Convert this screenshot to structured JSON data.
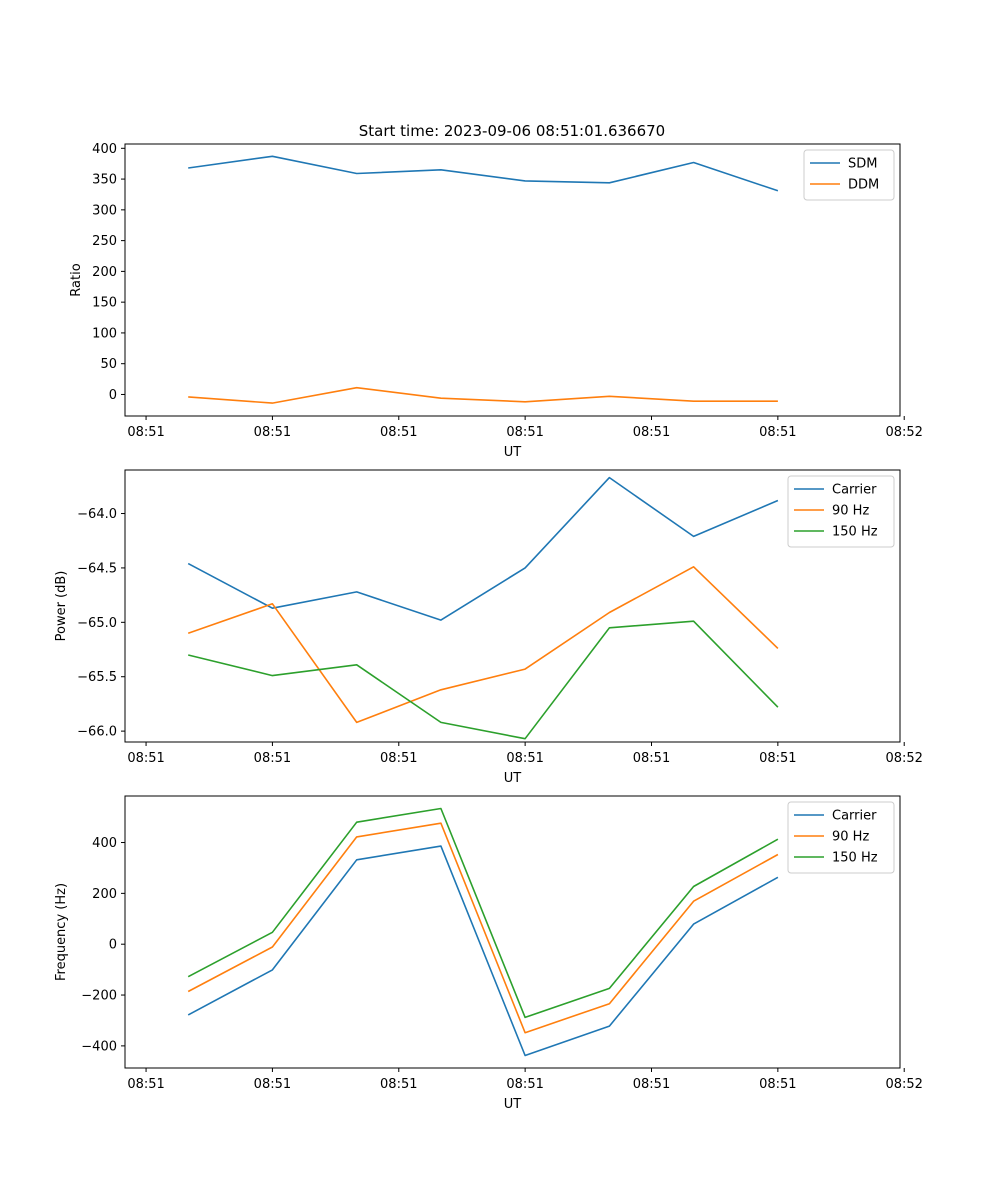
{
  "figure_title": "Start time: 2023-09-06 08:51:01.636670",
  "colors": {
    "c0": "#1f77b4",
    "c1": "#ff7f0e",
    "c2": "#2ca02c"
  },
  "chart_data": [
    {
      "type": "line",
      "title": "Start time: 2023-09-06 08:51:01.636670",
      "xlabel": "UT",
      "ylabel": "Ratio",
      "x": [
        1,
        2,
        3,
        4,
        5,
        6,
        7,
        8
      ],
      "xlim": [
        0.25,
        9.45
      ],
      "ylim": [
        -35,
        407
      ],
      "xticks": [
        0.5,
        2.0,
        3.5,
        5.0,
        6.5,
        8.0,
        9.5
      ],
      "xticklabels": [
        "08:51",
        "08:51",
        "08:51",
        "08:51",
        "08:51",
        "08:51",
        "08:52"
      ],
      "yticks": [
        400,
        350,
        300,
        250,
        200,
        150,
        100,
        50,
        0
      ],
      "yticklabels": [
        "400",
        "350",
        "300",
        "250",
        "200",
        "150",
        "100",
        "50",
        "0"
      ],
      "legend_loc": "top-right",
      "series": [
        {
          "name": "SDM",
          "color": "#1f77b4",
          "values": [
            368,
            387,
            359,
            365,
            347,
            344,
            377,
            331
          ]
        },
        {
          "name": "DDM",
          "color": "#ff7f0e",
          "values": [
            -4,
            -14,
            11,
            -6,
            -12,
            -3,
            -11,
            -11
          ]
        }
      ]
    },
    {
      "type": "line",
      "title": "",
      "xlabel": "UT",
      "ylabel": "Power (dB)",
      "x": [
        1,
        2,
        3,
        4,
        5,
        6,
        7,
        8
      ],
      "xlim": [
        0.25,
        9.45
      ],
      "ylim": [
        -66.1,
        -63.6
      ],
      "xticks": [
        0.5,
        2.0,
        3.5,
        5.0,
        6.5,
        8.0,
        9.5
      ],
      "xticklabels": [
        "08:51",
        "08:51",
        "08:51",
        "08:51",
        "08:51",
        "08:51",
        "08:52"
      ],
      "yticks": [
        -64.0,
        -64.5,
        -65.0,
        -65.5,
        -66.0
      ],
      "yticklabels": [
        "−64.0",
        "−64.5",
        "−65.0",
        "−65.5",
        "−66.0"
      ],
      "legend_loc": "top-right",
      "series": [
        {
          "name": "Carrier",
          "color": "#1f77b4",
          "values": [
            -64.46,
            -64.87,
            -64.72,
            -64.98,
            -64.5,
            -63.67,
            -64.21,
            -63.88
          ]
        },
        {
          "name": "90 Hz",
          "color": "#ff7f0e",
          "values": [
            -65.1,
            -64.83,
            -65.92,
            -65.62,
            -65.43,
            -64.91,
            -64.49,
            -65.24
          ]
        },
        {
          "name": "150 Hz",
          "color": "#2ca02c",
          "values": [
            -65.3,
            -65.49,
            -65.39,
            -65.92,
            -66.07,
            -65.05,
            -64.99,
            -65.78
          ]
        }
      ]
    },
    {
      "type": "line",
      "title": "",
      "xlabel": "UT",
      "ylabel": "Frequency (Hz)",
      "x": [
        1,
        2,
        3,
        4,
        5,
        6,
        7,
        8
      ],
      "xlim": [
        0.25,
        9.45
      ],
      "ylim": [
        -487,
        583
      ],
      "xticks": [
        0.5,
        2.0,
        3.5,
        5.0,
        6.5,
        8.0,
        9.5
      ],
      "xticklabels": [
        "08:51",
        "08:51",
        "08:51",
        "08:51",
        "08:51",
        "08:51",
        "08:52"
      ],
      "yticks": [
        400,
        200,
        0,
        -200,
        -400
      ],
      "yticklabels": [
        "400",
        "200",
        "0",
        "−200",
        "−400"
      ],
      "legend_loc": "top-right",
      "series": [
        {
          "name": "Carrier",
          "color": "#1f77b4",
          "values": [
            -278,
            -101,
            332,
            386,
            -438,
            -322,
            79,
            263
          ]
        },
        {
          "name": "90 Hz",
          "color": "#ff7f0e",
          "values": [
            -186,
            -11,
            422,
            476,
            -348,
            -234,
            169,
            353
          ]
        },
        {
          "name": "150 Hz",
          "color": "#2ca02c",
          "values": [
            -128,
            47,
            480,
            534,
            -288,
            -174,
            227,
            413
          ]
        }
      ]
    }
  ]
}
